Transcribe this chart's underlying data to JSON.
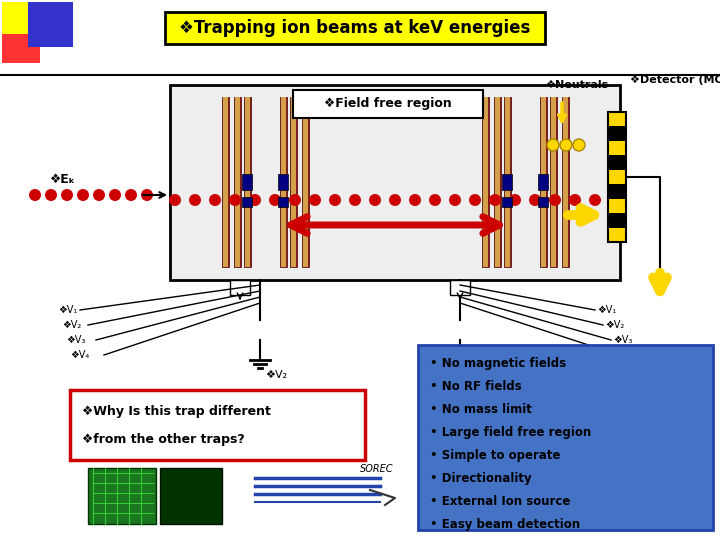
{
  "title": "❖Trapping ion beams at keV energies",
  "title_bg": "#FFFF00",
  "title_border": "#000000",
  "bg_color": "#FFFFFF",
  "field_free_label": "❖Field free region",
  "neutrals_label": "❖Neutrals",
  "detector_label": "❖Detector (MCP)",
  "ek_label": "❖Eₖ",
  "bullet_items": [
    "No magnetic fields",
    "No RF fields",
    "No mass limit",
    "Large field free region",
    "Simple to operate",
    "Directionality",
    "External Ion source",
    "Easy beam detection"
  ],
  "bullet_box_color": "#4472C4",
  "question_lines": [
    "❖Why Is this trap different",
    "❖from the other traps?"
  ],
  "v_labels": [
    "V₁",
    "V₂",
    "V₃",
    "V₄"
  ]
}
